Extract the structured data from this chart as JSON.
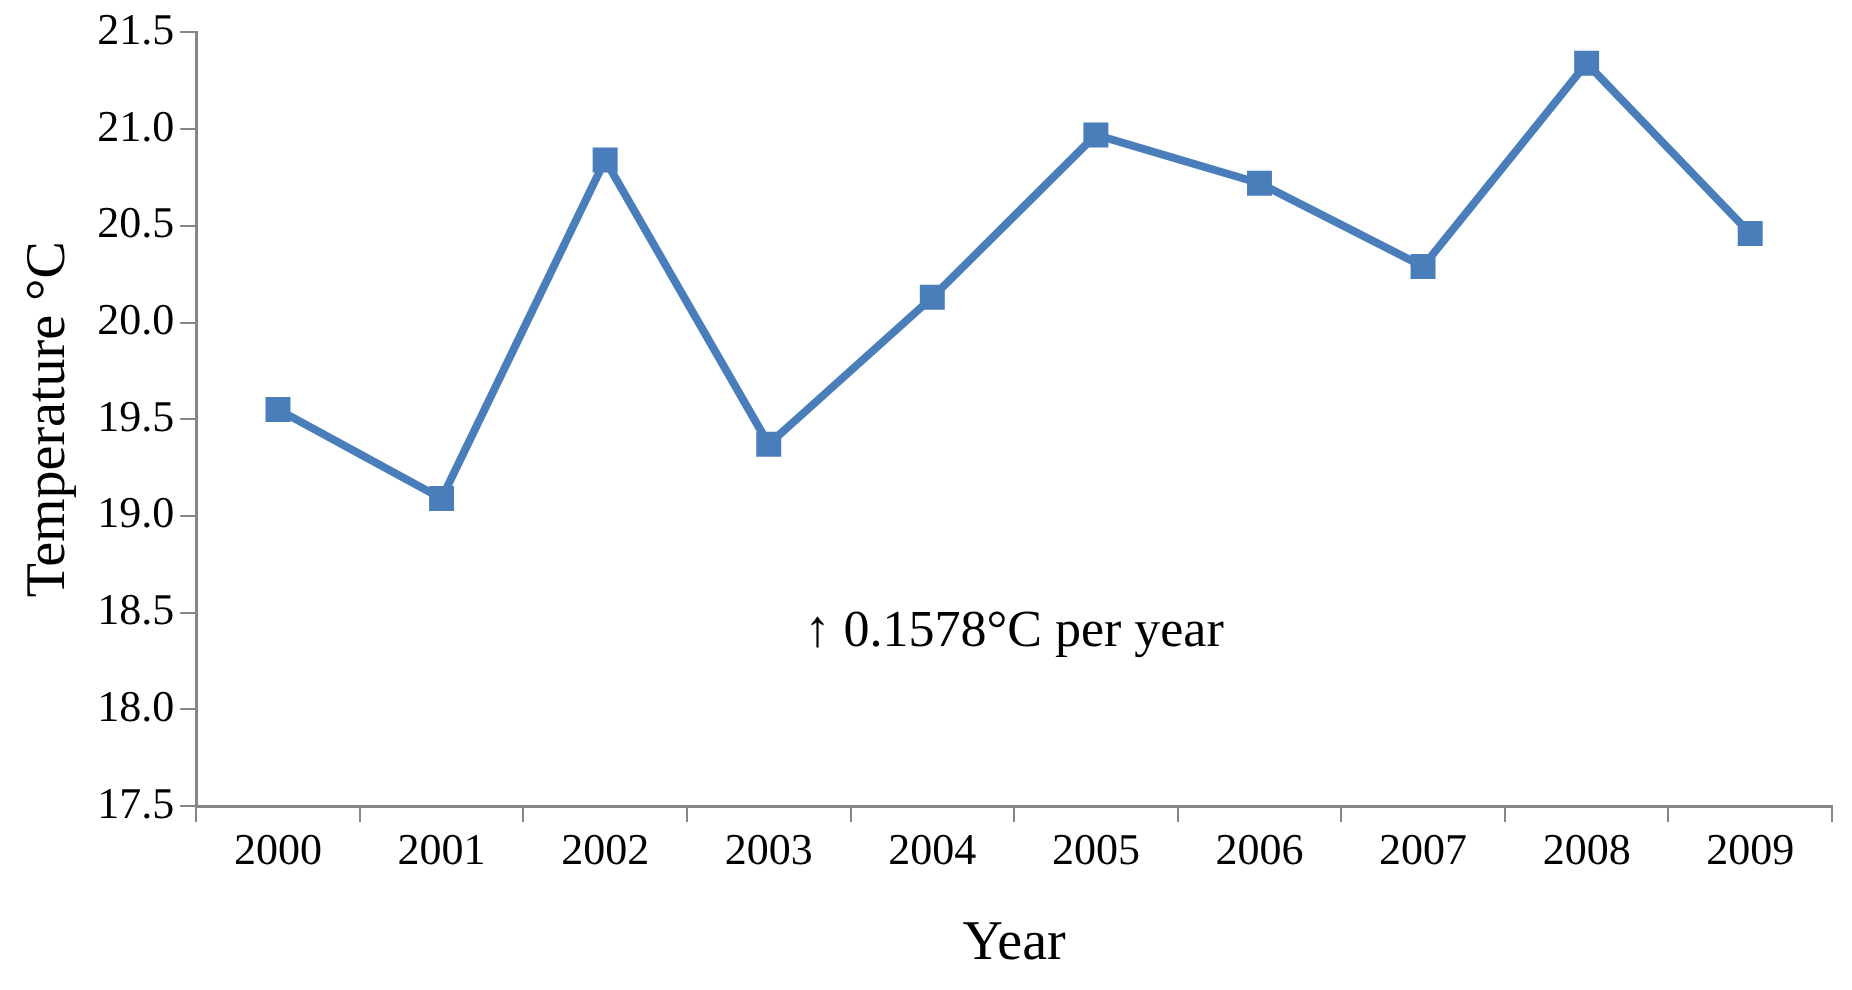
{
  "chart_data": {
    "type": "line",
    "xlabel": "Year",
    "ylabel": "Temperature °C",
    "categories": [
      "2000",
      "2001",
      "2002",
      "2003",
      "2004",
      "2005",
      "2006",
      "2007",
      "2008",
      "2009"
    ],
    "series": [
      {
        "color": "#4a7ebb",
        "values": [
          19.55,
          19.09,
          20.84,
          19.37,
          20.13,
          20.97,
          20.72,
          20.29,
          21.34,
          20.46
        ]
      }
    ],
    "ylim": [
      17.5,
      21.5
    ],
    "yticks": [
      17.5,
      {
        "value": 18,
        "label": "18.0"
      },
      18.5,
      {
        "value": 19,
        "label": "19.0"
      },
      19.5,
      {
        "value": 20,
        "label": "20.0"
      },
      20.5,
      {
        "value": 21,
        "label": "21.0"
      },
      21.5
    ],
    "grid": false,
    "legend": false,
    "marker": "square",
    "line_style": "solid",
    "annotations": [
      "↑ 0.1578°C per year"
    ]
  }
}
